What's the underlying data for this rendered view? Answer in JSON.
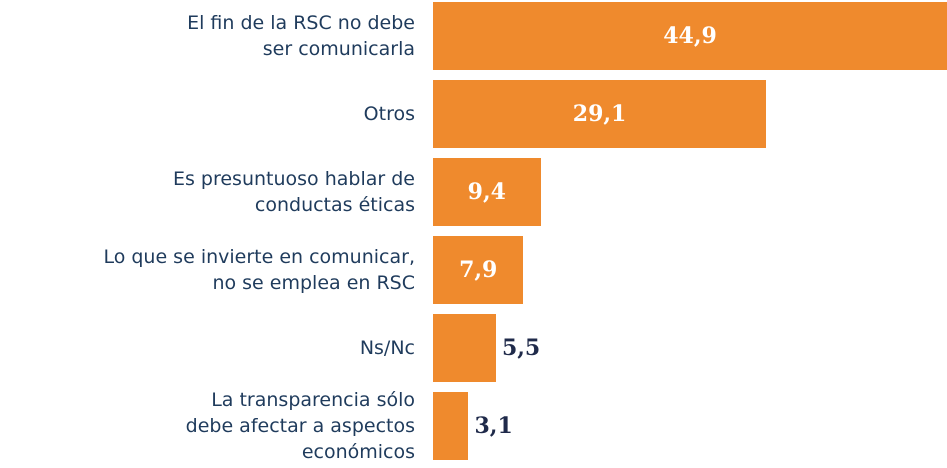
{
  "chart_data": {
    "type": "bar",
    "orientation": "horizontal",
    "categories": [
      "El fin de la RSC no debe\nser comunicarla",
      "Otros",
      "Es presuntuoso hablar de\nconductas éticas",
      "Lo que se invierte en comunicar,\nno se emplea en RSC",
      "Ns/Nc",
      "La transparencia sólo\ndebe afectar a aspectos\neconómicos"
    ],
    "values": [
      44.9,
      29.1,
      9.4,
      7.9,
      5.5,
      3.1
    ],
    "value_labels": [
      "44,9",
      "29,1",
      "9,4",
      "7,9",
      "5,5",
      "3,1"
    ],
    "color": "#ef8a2d"
  }
}
